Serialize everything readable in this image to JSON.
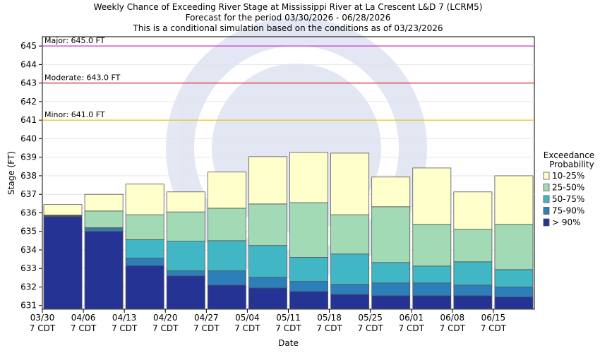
{
  "chart_data": {
    "type": "exceedance",
    "title": [
      "Weekly Chance of Exceeding River Stage at Mississippi River at La Crescent L&D 7 (LCRM5)",
      "Forecast for the period 03/30/2026 - 06/28/2026",
      "This is a conditional simulation based on the conditions as of 03/23/2026"
    ],
    "x_label": "Date",
    "y_label": "Stage (FT)",
    "categories": [
      "03/30",
      "04/06",
      "04/13",
      "04/20",
      "04/27",
      "05/04",
      "05/11",
      "05/18",
      "05/25",
      "06/01",
      "06/08",
      "06/15"
    ],
    "category_sublabel": "7 CDT",
    "legend_title": [
      "Exceedance",
      "Probability"
    ],
    "series": [
      {
        "name": "> 90%",
        "color": "#253494",
        "values": [
          635.8,
          635.0,
          633.15,
          632.6,
          632.1,
          631.95,
          631.76,
          631.6,
          631.53,
          631.53,
          631.53,
          631.46
        ]
      },
      {
        "name": "75-90%",
        "color": "#2c7fb8",
        "values": [
          635.83,
          635.15,
          633.55,
          632.87,
          632.87,
          632.52,
          632.3,
          632.14,
          632.22,
          632.22,
          632.1,
          632.0
        ]
      },
      {
        "name": "50-75%",
        "color": "#41b6c4",
        "values": [
          635.86,
          635.2,
          634.55,
          634.47,
          634.5,
          634.24,
          633.6,
          633.78,
          633.32,
          633.13,
          633.36,
          632.94
        ]
      },
      {
        "name": "25-50%",
        "color": "#a1dab4",
        "values": [
          635.88,
          636.1,
          635.9,
          636.05,
          636.25,
          636.48,
          636.55,
          635.9,
          636.33,
          635.38,
          635.11,
          635.38
        ]
      },
      {
        "name": "10-25%",
        "color": "#ffffcc",
        "values": [
          636.45,
          637.0,
          637.55,
          637.13,
          638.2,
          639.03,
          639.26,
          639.22,
          637.93,
          638.42,
          637.13,
          638.0
        ]
      }
    ],
    "thresholds": [
      {
        "label": "Major: 645.0 FT",
        "value": 645,
        "color": "#cc33cc"
      },
      {
        "label": "Moderate: 643.0 FT",
        "value": 643,
        "color": "#dd2222"
      },
      {
        "label": "Minor: 641.0 FT",
        "value": 641,
        "color": "#e6c200"
      }
    ],
    "ylim": [
      630.8,
      645.5
    ],
    "yticks": [
      631,
      632,
      633,
      634,
      635,
      636,
      637,
      638,
      639,
      640,
      641,
      642,
      643,
      644,
      645
    ],
    "grid": true
  }
}
